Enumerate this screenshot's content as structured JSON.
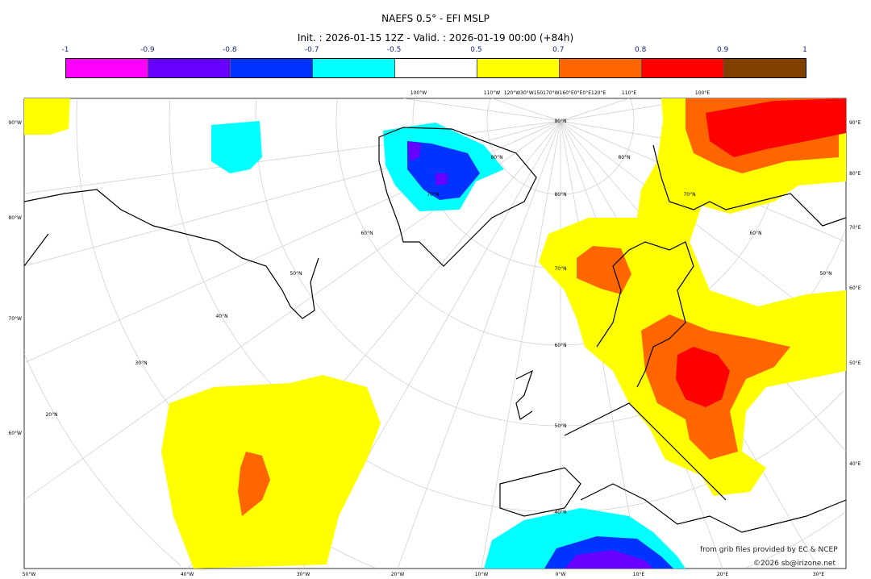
{
  "title": "NAEFS 0.5° - EFI MSLP",
  "subtitle": "Init. : 2026-01-15 12Z - Valid. : 2026-01-19 00:00 (+84h)",
  "colorbar": {
    "ticks": [
      "-1",
      "-0.9",
      "-0.8",
      "-0.7",
      "-0.5",
      "0.5",
      "0.7",
      "0.8",
      "0.9",
      "1"
    ],
    "colors": [
      "#ff00ff",
      "#6600ff",
      "#0033ff",
      "#00ffff",
      "#ffffff",
      "#ffff00",
      "#ff6600",
      "#ff0000",
      "#804000"
    ]
  },
  "map": {
    "top_labels": [
      "100°W",
      "110°W",
      "120°W30°W150170°W160°E0°E0°E120°E",
      "110°E",
      "100°E"
    ],
    "left_labels": [
      "90°W",
      "80°W",
      "70°W",
      "60°W"
    ],
    "right_labels": [
      "90°E",
      "80°E",
      "70°E",
      "60°E",
      "50°E",
      "40°E"
    ],
    "bottom_labels": [
      "50°W",
      "40°W",
      "30°W",
      "20°W",
      "10°W",
      "0°W",
      "10°E",
      "20°E",
      "30°E"
    ],
    "lat_labels": [
      "90°N",
      "80°N",
      "70°N",
      "60°N",
      "50°N",
      "40°N",
      "80°N",
      "70°N",
      "60°N",
      "50°N",
      "40°N",
      "30°N",
      "20°N",
      "80°N",
      "70°N",
      "60°N",
      "50°N"
    ]
  },
  "credits": {
    "source": "from grib files provided by EC & NCEP",
    "copyright": "©2026 sb@irizone.net"
  }
}
